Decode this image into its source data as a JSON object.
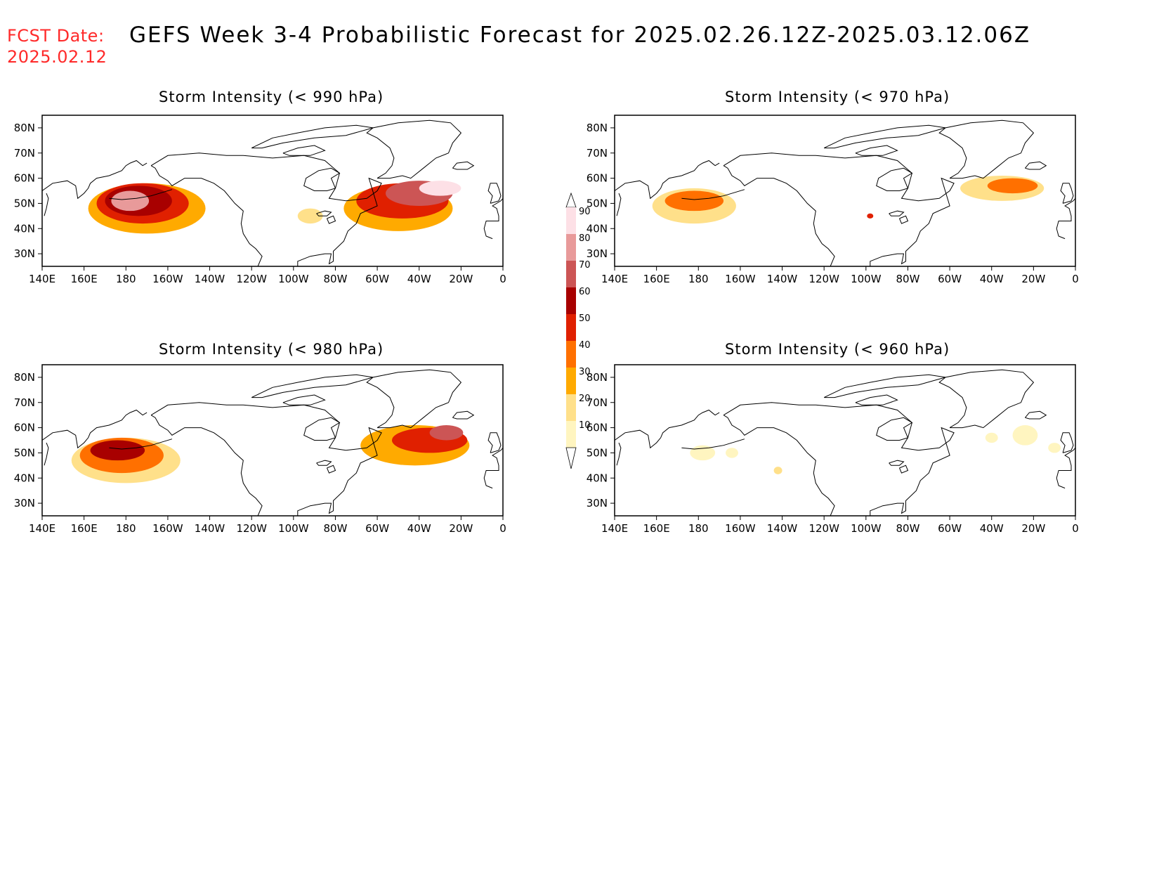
{
  "header": {
    "fcst_label": "FCST Date:",
    "fcst_date": "2025.02.12",
    "title": "GEFS Week 3-4 Probabilistic Forecast for 2025.02.26.12Z-2025.03.12.06Z"
  },
  "axes": {
    "lon_ticks": [
      "140E",
      "160E",
      "180",
      "160W",
      "140W",
      "120W",
      "100W",
      "80W",
      "60W",
      "40W",
      "20W",
      "0"
    ],
    "lat_ticks": [
      "80N",
      "70N",
      "60N",
      "50N",
      "40N",
      "30N"
    ],
    "lon_range": [
      140,
      360
    ],
    "lat_range": [
      25,
      85
    ]
  },
  "colorbar": {
    "levels": [
      "10",
      "20",
      "30",
      "40",
      "50",
      "60",
      "70",
      "80",
      "90"
    ],
    "colors": [
      "#fff5c0",
      "#ffe08a",
      "#ffaa00",
      "#ff7000",
      "#e02000",
      "#a80000",
      "#cc5555",
      "#e89a9a",
      "#fde0e6"
    ]
  },
  "panels": [
    {
      "title": "Storm Intensity (< 990 hPa)",
      "blobs": [
        {
          "lon": 190,
          "lat": 48,
          "rx": 28,
          "ry": 10,
          "level": 2
        },
        {
          "lon": 188,
          "lat": 50,
          "rx": 22,
          "ry": 8,
          "level": 4
        },
        {
          "lon": 186,
          "lat": 51,
          "rx": 16,
          "ry": 6,
          "level": 5
        },
        {
          "lon": 182,
          "lat": 51,
          "rx": 9,
          "ry": 4,
          "level": 7
        },
        {
          "lon": 310,
          "lat": 48,
          "rx": 26,
          "ry": 9,
          "level": 2
        },
        {
          "lon": 312,
          "lat": 51,
          "rx": 22,
          "ry": 7,
          "level": 4
        },
        {
          "lon": 320,
          "lat": 54,
          "rx": 16,
          "ry": 5,
          "level": 6
        },
        {
          "lon": 330,
          "lat": 56,
          "rx": 10,
          "ry": 3,
          "level": 8
        },
        {
          "lon": 268,
          "lat": 45,
          "rx": 6,
          "ry": 3,
          "level": 1
        }
      ]
    },
    {
      "title": "Storm Intensity (< 970 hPa)",
      "blobs": [
        {
          "lon": 178,
          "lat": 49,
          "rx": 20,
          "ry": 7,
          "level": 1
        },
        {
          "lon": 178,
          "lat": 51,
          "rx": 14,
          "ry": 4,
          "level": 3
        },
        {
          "lon": 325,
          "lat": 56,
          "rx": 20,
          "ry": 5,
          "level": 1
        },
        {
          "lon": 330,
          "lat": 57,
          "rx": 12,
          "ry": 3,
          "level": 3
        },
        {
          "lon": 262,
          "lat": 45,
          "rx": 1.5,
          "ry": 1,
          "level": 4
        }
      ]
    },
    {
      "title": "Storm Intensity (< 980 hPa)",
      "blobs": [
        {
          "lon": 180,
          "lat": 47,
          "rx": 26,
          "ry": 9,
          "level": 1
        },
        {
          "lon": 178,
          "lat": 49,
          "rx": 20,
          "ry": 7,
          "level": 3
        },
        {
          "lon": 176,
          "lat": 51,
          "rx": 13,
          "ry": 4,
          "level": 5
        },
        {
          "lon": 318,
          "lat": 53,
          "rx": 26,
          "ry": 8,
          "level": 2
        },
        {
          "lon": 325,
          "lat": 55,
          "rx": 18,
          "ry": 5,
          "level": 4
        },
        {
          "lon": 333,
          "lat": 58,
          "rx": 8,
          "ry": 3,
          "level": 6
        }
      ]
    },
    {
      "title": "Storm Intensity (< 960 hPa)",
      "blobs": [
        {
          "lon": 182,
          "lat": 50,
          "rx": 6,
          "ry": 3,
          "level": 0
        },
        {
          "lon": 196,
          "lat": 50,
          "rx": 3,
          "ry": 2,
          "level": 0
        },
        {
          "lon": 218,
          "lat": 43,
          "rx": 2,
          "ry": 1.5,
          "level": 1
        },
        {
          "lon": 320,
          "lat": 56,
          "rx": 3,
          "ry": 2,
          "level": 0
        },
        {
          "lon": 336,
          "lat": 57,
          "rx": 6,
          "ry": 4,
          "level": 0
        },
        {
          "lon": 350,
          "lat": 52,
          "rx": 3,
          "ry": 2,
          "level": 0
        }
      ]
    }
  ]
}
